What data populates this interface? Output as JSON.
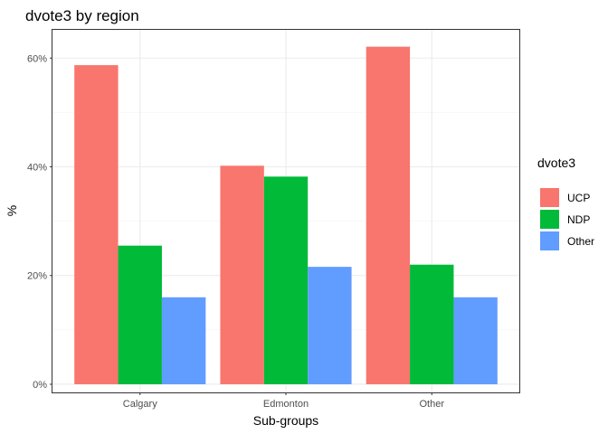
{
  "chart_data": {
    "type": "bar",
    "title": "dvote3 by region",
    "xlabel": "Sub-groups",
    "ylabel": "%",
    "categories": [
      "Calgary",
      "Edmonton",
      "Other"
    ],
    "series": [
      {
        "name": "UCP",
        "values": [
          58.7,
          40.2,
          62.1
        ],
        "color": "#F8766D"
      },
      {
        "name": "NDP",
        "values": [
          25.5,
          38.2,
          22.0
        ],
        "color": "#00BA38"
      },
      {
        "name": "Other",
        "values": [
          16.0,
          21.6,
          16.0
        ],
        "color": "#619CFF"
      }
    ],
    "ylim": [
      -1.5,
      65.2
    ],
    "yticks": [
      0,
      20,
      40,
      60
    ],
    "ytick_labels": [
      "0%",
      "20%",
      "40%",
      "60%"
    ],
    "legend_title": "dvote3",
    "legend_position": "right",
    "grid": true
  }
}
